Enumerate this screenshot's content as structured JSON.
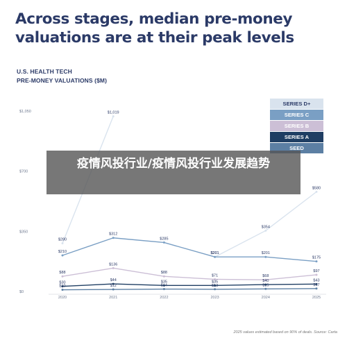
{
  "headline": "Across stages, median pre-money valuations are at their peak levels",
  "subtitle_line1": "U.S. HEALTH TECH",
  "subtitle_line2": "PRE-MONEY VALUATIONS ($M)",
  "overlay_text": "疫情风投行业/疫情风投行业发展趋势",
  "source_note": "2025 values estimated based on 90% of deals. Source: Carta",
  "chart_data": {
    "type": "line",
    "title": "",
    "xlabel": "",
    "ylabel": "",
    "x": [
      2020,
      2021,
      2022,
      2023,
      2024,
      2025
    ],
    "y_ticks": [
      0,
      350,
      700,
      1050
    ],
    "y_tick_labels": [
      "$0",
      "$350",
      "$700",
      "$1,050"
    ],
    "ylim": [
      0,
      1050
    ],
    "grid": false,
    "legend_position": "top-right",
    "series": [
      {
        "name": "SERIES D+",
        "color": "#d9e3ee",
        "values": [
          280,
          1019,
          null,
          201,
          354,
          580
        ],
        "labels": [
          "$280",
          "$1,019",
          "",
          "$201",
          "$354",
          "$580"
        ]
      },
      {
        "name": "SERIES C",
        "color": "#7a9fc4",
        "values": [
          210,
          312,
          285,
          201,
          201,
          175
        ],
        "labels": [
          "$210",
          "$312",
          "$285",
          "$201",
          "$201",
          "$175"
        ]
      },
      {
        "name": "SERIES B",
        "color": "#ccbfd6",
        "values": [
          88,
          136,
          88,
          71,
          68,
          97
        ],
        "labels": [
          "$88",
          "$136",
          "$88",
          "$71",
          "$68",
          "$97"
        ]
      },
      {
        "name": "SERIES A",
        "color": "#1f3e63",
        "values": [
          30,
          44,
          35,
          35,
          40,
          43
        ],
        "labels": [
          "$30",
          "$44",
          "$35",
          "$35",
          "$40",
          "$43"
        ]
      },
      {
        "name": "SEED",
        "color": "#5c7fa3",
        "values": [
          10,
          12,
          14,
          13,
          15,
          17
        ],
        "labels": [
          "$10",
          "$12",
          "$14",
          "$13",
          "$15",
          "$17"
        ]
      }
    ]
  }
}
